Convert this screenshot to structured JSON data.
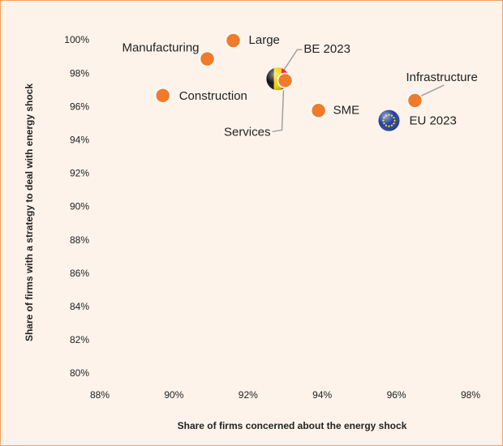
{
  "chart_data": {
    "type": "scatter",
    "xlabel": "Share of firms concerned about the energy shock",
    "ylabel": "Share of firms  with a  strategy to deal with energy shock",
    "xlim": [
      88,
      98
    ],
    "ylim": [
      80,
      100
    ],
    "xticks": [
      {
        "value": 88,
        "label": "88%"
      },
      {
        "value": 90,
        "label": "90%"
      },
      {
        "value": 92,
        "label": "92%"
      },
      {
        "value": 94,
        "label": "94%"
      },
      {
        "value": 96,
        "label": "96%"
      },
      {
        "value": 98,
        "label": "98%"
      }
    ],
    "yticks": [
      {
        "value": 80,
        "label": "80%"
      },
      {
        "value": 82,
        "label": "82%"
      },
      {
        "value": 84,
        "label": "84%"
      },
      {
        "value": 86,
        "label": "86%"
      },
      {
        "value": 88,
        "label": "88%"
      },
      {
        "value": 90,
        "label": "90%"
      },
      {
        "value": 92,
        "label": "92%"
      },
      {
        "value": 94,
        "label": "94%"
      },
      {
        "value": 96,
        "label": "96%"
      },
      {
        "value": 98,
        "label": "98%"
      },
      {
        "value": 100,
        "label": "100%"
      }
    ],
    "color": "#f07b2b",
    "points": [
      {
        "label": "Large",
        "x": 91.6,
        "y": 100,
        "marker": "dot"
      },
      {
        "label": "Manufacturing",
        "x": 90.9,
        "y": 98.9,
        "marker": "dot"
      },
      {
        "label": "Construction",
        "x": 89.7,
        "y": 96.7,
        "marker": "dot"
      },
      {
        "label": "BE 2023",
        "x": 92.8,
        "y": 97.7,
        "marker": "flag-be"
      },
      {
        "label": "Services",
        "x": 93.0,
        "y": 97.6,
        "marker": "dot"
      },
      {
        "label": "SME",
        "x": 93.9,
        "y": 95.8,
        "marker": "dot"
      },
      {
        "label": "EU 2023",
        "x": 95.8,
        "y": 95.2,
        "marker": "flag-eu"
      },
      {
        "label": "Infrastructure",
        "x": 96.5,
        "y": 96.4,
        "marker": "dot"
      }
    ]
  }
}
